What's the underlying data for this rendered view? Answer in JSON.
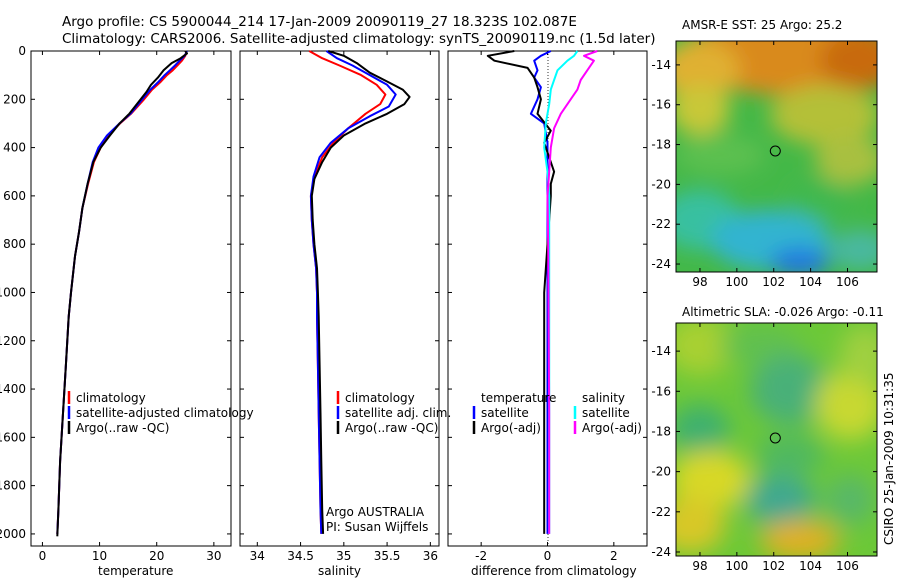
{
  "header": {
    "line1": "Argo profile: CS 5900044_214 17-Jan-2009 20090119_27 18.323S 102.087E",
    "line2": "Climatology: CARS2006. Satellite-adjusted climatology: synTS_20090119.nc (1.5d later)"
  },
  "side_label": "CSIRO 25-Jan-2009 10:31:35",
  "chart_data": [
    {
      "id": "temperature",
      "type": "line",
      "xlabel": "temperature",
      "ylabel": "",
      "xlim": [
        -2,
        33
      ],
      "ylim": [
        2050,
        0
      ],
      "x_ticks": [
        0,
        10,
        20,
        30
      ],
      "y_ticks": [
        0,
        200,
        400,
        600,
        800,
        1000,
        1200,
        1400,
        1600,
        1800,
        2000
      ],
      "legend": [
        "climatology",
        "satellite-adjusted climatology",
        "Argo(..raw -QC)"
      ],
      "series": [
        {
          "name": "climatology",
          "color": "#ff0000",
          "points": [
            [
              25.2,
              0
            ],
            [
              25.0,
              20
            ],
            [
              24.4,
              40
            ],
            [
              23.6,
              60
            ],
            [
              22.8,
              80
            ],
            [
              21.8,
              100
            ],
            [
              20.6,
              130
            ],
            [
              19.2,
              160
            ],
            [
              17.8,
              200
            ],
            [
              15.5,
              260
            ],
            [
              13.6,
              300
            ],
            [
              11.5,
              350
            ],
            [
              10.2,
              400
            ],
            [
              9.0,
              460
            ],
            [
              8.0,
              550
            ],
            [
              7.0,
              650
            ],
            [
              6.4,
              750
            ],
            [
              5.7,
              850
            ],
            [
              5.0,
              1000
            ],
            [
              4.6,
              1100
            ],
            [
              4.1,
              1300
            ],
            [
              3.6,
              1500
            ],
            [
              3.1,
              1700
            ],
            [
              2.8,
              1900
            ],
            [
              2.6,
              2000
            ]
          ]
        },
        {
          "name": "satellite-adjusted climatology",
          "color": "#0000ff",
          "points": [
            [
              25.3,
              0
            ],
            [
              24.9,
              20
            ],
            [
              24.0,
              40
            ],
            [
              23.2,
              60
            ],
            [
              22.3,
              80
            ],
            [
              21.4,
              100
            ],
            [
              20.2,
              130
            ],
            [
              18.9,
              160
            ],
            [
              17.5,
              200
            ],
            [
              15.4,
              260
            ],
            [
              13.5,
              300
            ],
            [
              11.3,
              350
            ],
            [
              9.8,
              400
            ],
            [
              8.8,
              460
            ],
            [
              7.9,
              550
            ],
            [
              7.0,
              650
            ],
            [
              6.4,
              750
            ],
            [
              5.7,
              850
            ],
            [
              5.0,
              1000
            ],
            [
              4.6,
              1100
            ],
            [
              4.1,
              1300
            ],
            [
              3.6,
              1500
            ],
            [
              3.1,
              1700
            ],
            [
              2.8,
              1900
            ],
            [
              2.6,
              2000
            ]
          ]
        },
        {
          "name": "Argo(..raw -QC)",
          "color": "#000000",
          "points": [
            [
              25.0,
              0
            ],
            [
              25.3,
              10
            ],
            [
              24.2,
              30
            ],
            [
              22.6,
              50
            ],
            [
              21.2,
              80
            ],
            [
              20.2,
              110
            ],
            [
              19.0,
              140
            ],
            [
              18.2,
              170
            ],
            [
              17.2,
              200
            ],
            [
              15.2,
              260
            ],
            [
              13.5,
              300
            ],
            [
              11.8,
              350
            ],
            [
              10.2,
              400
            ],
            [
              8.9,
              460
            ],
            [
              7.9,
              550
            ],
            [
              7.0,
              650
            ],
            [
              6.4,
              750
            ],
            [
              5.7,
              850
            ],
            [
              5.0,
              1000
            ],
            [
              4.6,
              1100
            ],
            [
              4.1,
              1300
            ],
            [
              3.6,
              1500
            ],
            [
              3.1,
              1700
            ],
            [
              2.8,
              1900
            ],
            [
              2.6,
              2010
            ]
          ]
        }
      ]
    },
    {
      "id": "salinity",
      "type": "line",
      "xlabel": "salinity",
      "xlim": [
        33.8,
        36.1
      ],
      "ylim": [
        2050,
        0
      ],
      "x_ticks": [
        34,
        34.5,
        35,
        35.5,
        36
      ],
      "legend": [
        "climatology",
        "satellite adj. clim.",
        "Argo(..raw -QC)"
      ],
      "annotation": [
        "Argo AUSTRALIA",
        "PI: Susan Wijffels"
      ],
      "series": [
        {
          "name": "climatology",
          "color": "#ff0000",
          "points": [
            [
              34.6,
              0
            ],
            [
              34.75,
              30
            ],
            [
              34.95,
              60
            ],
            [
              35.2,
              100
            ],
            [
              35.38,
              140
            ],
            [
              35.48,
              180
            ],
            [
              35.42,
              220
            ],
            [
              35.25,
              260
            ],
            [
              35.05,
              320
            ],
            [
              34.88,
              380
            ],
            [
              34.75,
              440
            ],
            [
              34.66,
              520
            ],
            [
              34.62,
              600
            ],
            [
              34.63,
              700
            ],
            [
              34.65,
              800
            ],
            [
              34.68,
              900
            ],
            [
              34.69,
              1000
            ],
            [
              34.69,
              1100
            ],
            [
              34.7,
              1300
            ],
            [
              34.71,
              1500
            ],
            [
              34.72,
              1700
            ],
            [
              34.73,
              1900
            ],
            [
              34.74,
              2000
            ]
          ]
        },
        {
          "name": "satellite adj. clim.",
          "color": "#0000ff",
          "points": [
            [
              34.8,
              0
            ],
            [
              34.92,
              30
            ],
            [
              35.1,
              60
            ],
            [
              35.3,
              100
            ],
            [
              35.5,
              140
            ],
            [
              35.6,
              180
            ],
            [
              35.52,
              230
            ],
            [
              35.3,
              270
            ],
            [
              35.05,
              320
            ],
            [
              34.85,
              380
            ],
            [
              34.72,
              440
            ],
            [
              34.65,
              520
            ],
            [
              34.62,
              600
            ],
            [
              34.63,
              700
            ],
            [
              34.65,
              800
            ],
            [
              34.68,
              900
            ],
            [
              34.69,
              1000
            ],
            [
              34.69,
              1100
            ],
            [
              34.7,
              1300
            ],
            [
              34.71,
              1500
            ],
            [
              34.72,
              1700
            ],
            [
              34.73,
              1900
            ],
            [
              34.74,
              2000
            ]
          ]
        },
        {
          "name": "Argo(..raw -QC)",
          "color": "#000000",
          "points": [
            [
              34.82,
              0
            ],
            [
              35.0,
              20
            ],
            [
              35.15,
              50
            ],
            [
              35.3,
              90
            ],
            [
              35.52,
              130
            ],
            [
              35.68,
              160
            ],
            [
              35.76,
              190
            ],
            [
              35.7,
              220
            ],
            [
              35.5,
              260
            ],
            [
              35.25,
              300
            ],
            [
              35.0,
              350
            ],
            [
              34.85,
              400
            ],
            [
              34.75,
              460
            ],
            [
              34.66,
              530
            ],
            [
              34.63,
              600
            ],
            [
              34.64,
              700
            ],
            [
              34.66,
              800
            ],
            [
              34.69,
              900
            ],
            [
              34.7,
              1000
            ],
            [
              34.71,
              1100
            ],
            [
              34.72,
              1300
            ],
            [
              34.73,
              1500
            ],
            [
              34.74,
              1700
            ],
            [
              34.75,
              1900
            ],
            [
              34.76,
              2000
            ]
          ]
        }
      ]
    },
    {
      "id": "difference",
      "type": "line",
      "xlabel": "difference from climatology",
      "xlim": [
        -3,
        3
      ],
      "ylim": [
        2050,
        0
      ],
      "x_ticks": [
        -2,
        0,
        2
      ],
      "legend_headers": [
        "temperature",
        "salinity"
      ],
      "legend": [
        "satellite",
        "Argo(-adj)",
        "satellite",
        "Argo(-adj)"
      ],
      "series": [
        {
          "name": "temperature satellite",
          "color": "#0000ff",
          "points": [
            [
              0.1,
              0
            ],
            [
              -0.2,
              20
            ],
            [
              -0.4,
              40
            ],
            [
              -0.3,
              80
            ],
            [
              -0.4,
              110
            ],
            [
              -0.2,
              150
            ],
            [
              -0.3,
              200
            ],
            [
              -0.5,
              260
            ],
            [
              -0.1,
              300
            ],
            [
              0.0,
              380
            ],
            [
              0.0,
              500
            ],
            [
              0.0,
              1000
            ],
            [
              0.0,
              2000
            ]
          ]
        },
        {
          "name": "temperature Argo(-adj)",
          "color": "#000000",
          "points": [
            [
              -1.0,
              0
            ],
            [
              -1.8,
              20
            ],
            [
              -1.6,
              40
            ],
            [
              -0.6,
              70
            ],
            [
              -0.4,
              110
            ],
            [
              -0.3,
              150
            ],
            [
              -0.2,
              200
            ],
            [
              -0.3,
              260
            ],
            [
              0.1,
              330
            ],
            [
              -0.1,
              380
            ],
            [
              0.2,
              500
            ],
            [
              0.1,
              550
            ],
            [
              0.1,
              600
            ],
            [
              0.0,
              800
            ],
            [
              -0.1,
              1000
            ],
            [
              -0.1,
              1200
            ],
            [
              -0.1,
              1400
            ],
            [
              -0.1,
              1600
            ],
            [
              -0.1,
              1800
            ],
            [
              -0.1,
              2000
            ]
          ]
        },
        {
          "name": "salinity satellite",
          "color": "#00ffff",
          "points": [
            [
              0.9,
              0
            ],
            [
              0.8,
              20
            ],
            [
              0.6,
              40
            ],
            [
              0.3,
              80
            ],
            [
              0.2,
              120
            ],
            [
              0.1,
              160
            ],
            [
              0.05,
              220
            ],
            [
              -0.05,
              300
            ],
            [
              -0.1,
              400
            ],
            [
              0.0,
              500
            ],
            [
              0.05,
              600
            ],
            [
              0.05,
              800
            ],
            [
              0.05,
              1000
            ],
            [
              0.05,
              1500
            ],
            [
              0.05,
              2000
            ]
          ]
        },
        {
          "name": "salinity Argo(-adj)",
          "color": "#ff00ff",
          "points": [
            [
              1.5,
              0
            ],
            [
              1.1,
              20
            ],
            [
              1.4,
              40
            ],
            [
              1.2,
              80
            ],
            [
              1.0,
              120
            ],
            [
              0.9,
              160
            ],
            [
              0.7,
              200
            ],
            [
              0.4,
              260
            ],
            [
              0.2,
              320
            ],
            [
              0.1,
              400
            ],
            [
              0.05,
              500
            ],
            [
              0.0,
              600
            ],
            [
              0.02,
              800
            ],
            [
              0.03,
              1000
            ],
            [
              0.05,
              1500
            ],
            [
              0.05,
              2000
            ]
          ]
        }
      ]
    },
    {
      "id": "sst_map",
      "type": "heatmap",
      "title": "AMSR-E SST: 25 Argo: 25.2",
      "xlim": [
        96.7,
        107.6
      ],
      "ylim": [
        -24.4,
        -12.8
      ],
      "x_ticks": [
        98,
        100,
        102,
        104,
        106
      ],
      "y_ticks": [
        -14,
        -16,
        -18,
        -20,
        -22,
        -24
      ],
      "marker": [
        102.087,
        -18.323
      ]
    },
    {
      "id": "sla_map",
      "type": "heatmap",
      "title": "Altimetric SLA: -0.026 Argo: -0.11",
      "xlim": [
        96.7,
        107.6
      ],
      "ylim": [
        -24.2,
        -12.6
      ],
      "x_ticks": [
        98,
        100,
        102,
        104,
        106
      ],
      "y_ticks": [
        -14,
        -16,
        -18,
        -20,
        -22,
        -24
      ],
      "marker": [
        102.087,
        -18.323
      ]
    }
  ]
}
